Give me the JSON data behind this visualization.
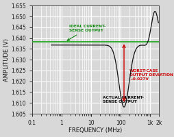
{
  "title": "",
  "xlabel": "FREQUENCY (MHz)",
  "ylabel": "AMPLITUDE (V)",
  "xlim_log": [
    0.1,
    2000
  ],
  "ylim": [
    1.605,
    1.655
  ],
  "yticks": [
    1.605,
    1.61,
    1.615,
    1.62,
    1.625,
    1.63,
    1.635,
    1.64,
    1.645,
    1.65,
    1.655
  ],
  "xtick_labels": [
    "0.1",
    "1",
    "10",
    "100",
    "1k",
    "2k"
  ],
  "ideal_value": 1.6382,
  "actual_flat": 1.6368,
  "worst_case_freq": 130,
  "worst_case_val": 1.6095,
  "bg_color": "#d8d8d8",
  "plot_bg_color": "#d8d8d8",
  "grid_color": "#ffffff",
  "ideal_color": "#22aa22",
  "actual_color": "#111111",
  "arrow_color": "#cc0000",
  "annotation_color_red": "#cc0000",
  "annotation_color_green": "#118811",
  "annotation_color_black": "#111111",
  "ideal_label": "IDEAL CURRENT-\nSENSE OUTPUT",
  "actual_label": "ACTUAL CURRENT-\nSENSE OUTPUT",
  "deviation_label": "WORST-CASE\nOUTPUT DEVIATION\n~0.027V"
}
